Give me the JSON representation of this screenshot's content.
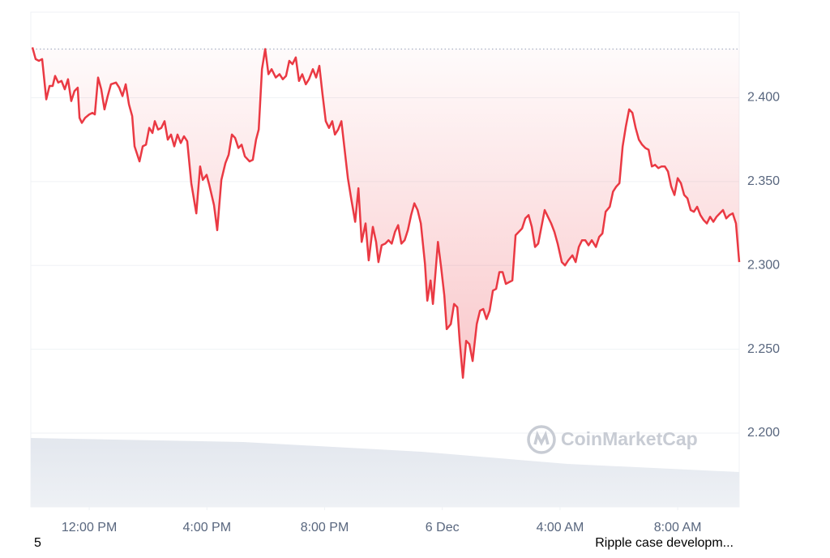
{
  "chart_data": {
    "type": "line",
    "x": [
      10.07,
      10.18,
      10.29,
      10.4,
      10.54,
      10.65,
      10.76,
      10.84,
      10.95,
      11.06,
      11.17,
      11.28,
      11.39,
      11.5,
      11.61,
      11.67,
      11.75,
      11.86,
      12.0,
      12.11,
      12.19,
      12.3,
      12.41,
      12.52,
      12.63,
      12.74,
      12.91,
      13.02,
      13.13,
      13.24,
      13.35,
      13.46,
      13.54,
      13.71,
      13.82,
      13.93,
      14.04,
      14.15,
      14.23,
      14.34,
      14.45,
      14.56,
      14.67,
      14.78,
      14.89,
      15.0,
      15.11,
      15.22,
      15.33,
      15.47,
      15.64,
      15.77,
      15.86,
      15.99,
      16.08,
      16.24,
      16.35,
      16.49,
      16.63,
      16.74,
      16.85,
      16.96,
      17.07,
      17.18,
      17.29,
      17.45,
      17.56,
      17.67,
      17.76,
      17.87,
      17.98,
      18.09,
      18.2,
      18.34,
      18.47,
      18.58,
      18.69,
      18.8,
      18.91,
      19.02,
      19.13,
      19.24,
      19.36,
      19.47,
      19.6,
      19.71,
      19.82,
      19.93,
      20.04,
      20.15,
      20.26,
      20.35,
      20.46,
      20.57,
      20.68,
      20.79,
      20.9,
      21.04,
      21.15,
      21.26,
      21.39,
      21.5,
      21.64,
      21.75,
      21.83,
      21.94,
      22.06,
      22.17,
      22.28,
      22.39,
      22.5,
      22.61,
      22.72,
      22.83,
      22.94,
      23.05,
      23.16,
      23.27,
      23.41,
      23.49,
      23.6,
      23.68,
      23.76,
      23.85,
      23.96,
      24.07,
      24.15,
      24.29,
      24.4,
      24.51,
      24.59,
      24.7,
      24.81,
      24.92,
      25.03,
      25.17,
      25.28,
      25.39,
      25.5,
      25.61,
      25.72,
      25.83,
      25.94,
      26.05,
      26.16,
      26.27,
      26.38,
      26.49,
      26.6,
      26.71,
      26.82,
      26.93,
      27.04,
      27.15,
      27.26,
      27.37,
      27.48,
      27.59,
      27.7,
      27.81,
      27.92,
      28.06,
      28.17,
      28.28,
      28.42,
      28.53,
      28.64,
      28.75,
      28.86,
      28.97,
      29.08,
      29.22,
      29.33,
      29.44,
      29.55,
      29.69,
      29.8,
      29.91,
      30.02,
      30.13,
      30.24,
      30.35,
      30.46,
      30.57,
      30.68,
      30.79,
      30.9,
      31.01,
      31.12,
      31.23,
      31.34,
      31.45,
      31.56,
      31.67,
      31.78,
      31.89,
      32.0,
      32.11,
      32.22,
      32.33,
      32.44,
      32.55,
      32.66,
      32.77,
      32.88,
      32.99,
      33.1,
      33.21,
      33.32,
      33.43,
      33.54,
      33.65,
      33.76,
      33.87,
      33.98,
      34.09
    ],
    "values": [
      2.43,
      2.423,
      2.422,
      2.423,
      2.399,
      2.407,
      2.407,
      2.413,
      2.409,
      2.41,
      2.405,
      2.411,
      2.398,
      2.404,
      2.406,
      2.388,
      2.385,
      2.388,
      2.39,
      2.391,
      2.39,
      2.412,
      2.405,
      2.393,
      2.401,
      2.408,
      2.409,
      2.406,
      2.401,
      2.408,
      2.396,
      2.389,
      2.371,
      2.362,
      2.371,
      2.372,
      2.382,
      2.379,
      2.386,
      2.381,
      2.382,
      2.386,
      2.375,
      2.378,
      2.371,
      2.378,
      2.373,
      2.377,
      2.374,
      2.349,
      2.331,
      2.359,
      2.351,
      2.354,
      2.348,
      2.336,
      2.321,
      2.351,
      2.361,
      2.366,
      2.378,
      2.376,
      2.37,
      2.372,
      2.365,
      2.362,
      2.363,
      2.375,
      2.381,
      2.417,
      2.429,
      2.414,
      2.417,
      2.412,
      2.414,
      2.411,
      2.413,
      2.422,
      2.42,
      2.424,
      2.41,
      2.414,
      2.408,
      2.411,
      2.417,
      2.412,
      2.419,
      2.402,
      2.386,
      2.382,
      2.386,
      2.378,
      2.381,
      2.386,
      2.369,
      2.352,
      2.34,
      2.326,
      2.346,
      2.314,
      2.325,
      2.303,
      2.323,
      2.314,
      2.302,
      2.312,
      2.313,
      2.315,
      2.313,
      2.32,
      2.324,
      2.313,
      2.315,
      2.321,
      2.33,
      2.337,
      2.333,
      2.325,
      2.301,
      2.279,
      2.291,
      2.277,
      2.294,
      2.314,
      2.299,
      2.282,
      2.262,
      2.265,
      2.277,
      2.275,
      2.255,
      2.233,
      2.255,
      2.253,
      2.243,
      2.265,
      2.273,
      2.274,
      2.268,
      2.273,
      2.285,
      2.286,
      2.296,
      2.296,
      2.289,
      2.29,
      2.291,
      2.318,
      2.32,
      2.322,
      2.328,
      2.33,
      2.323,
      2.311,
      2.313,
      2.323,
      2.333,
      2.329,
      2.325,
      2.32,
      2.313,
      2.302,
      2.3,
      2.303,
      2.306,
      2.302,
      2.311,
      2.315,
      2.315,
      2.312,
      2.315,
      2.311,
      2.317,
      2.319,
      2.332,
      2.335,
      2.344,
      2.347,
      2.349,
      2.371,
      2.383,
      2.393,
      2.391,
      2.382,
      2.375,
      2.372,
      2.37,
      2.369,
      2.359,
      2.36,
      2.358,
      2.359,
      2.359,
      2.356,
      2.347,
      2.342,
      2.352,
      2.349,
      2.342,
      2.34,
      2.333,
      2.332,
      2.335,
      2.33,
      2.327,
      2.325,
      2.329,
      2.326,
      2.329,
      2.331,
      2.333,
      2.328,
      2.33,
      2.331,
      2.325,
      2.302
    ],
    "color": "#ea3943",
    "baseline": 2.429,
    "xlim": [
      10.07,
      34.09
    ],
    "xticks": [
      {
        "value": 12,
        "label": "12:00 PM"
      },
      {
        "value": 16,
        "label": "4:00 PM"
      },
      {
        "value": 20,
        "label": "8:00 PM"
      },
      {
        "value": 24,
        "label": "6 Dec"
      },
      {
        "value": 28,
        "label": "4:00 AM"
      },
      {
        "value": 32,
        "label": "8:00 AM"
      }
    ],
    "ylim": [
      2.156,
      2.451
    ],
    "yticks": [
      {
        "value": 2.2,
        "label": "2.200"
      },
      {
        "value": 2.25,
        "label": "2.250"
      },
      {
        "value": 2.3,
        "label": "2.300"
      },
      {
        "value": 2.35,
        "label": "2.350"
      },
      {
        "value": 2.4,
        "label": "2.400"
      }
    ],
    "grid": true,
    "watermark": "CoinMarketCap",
    "footer_left": "5",
    "footer_right": "Ripple case developm..."
  }
}
